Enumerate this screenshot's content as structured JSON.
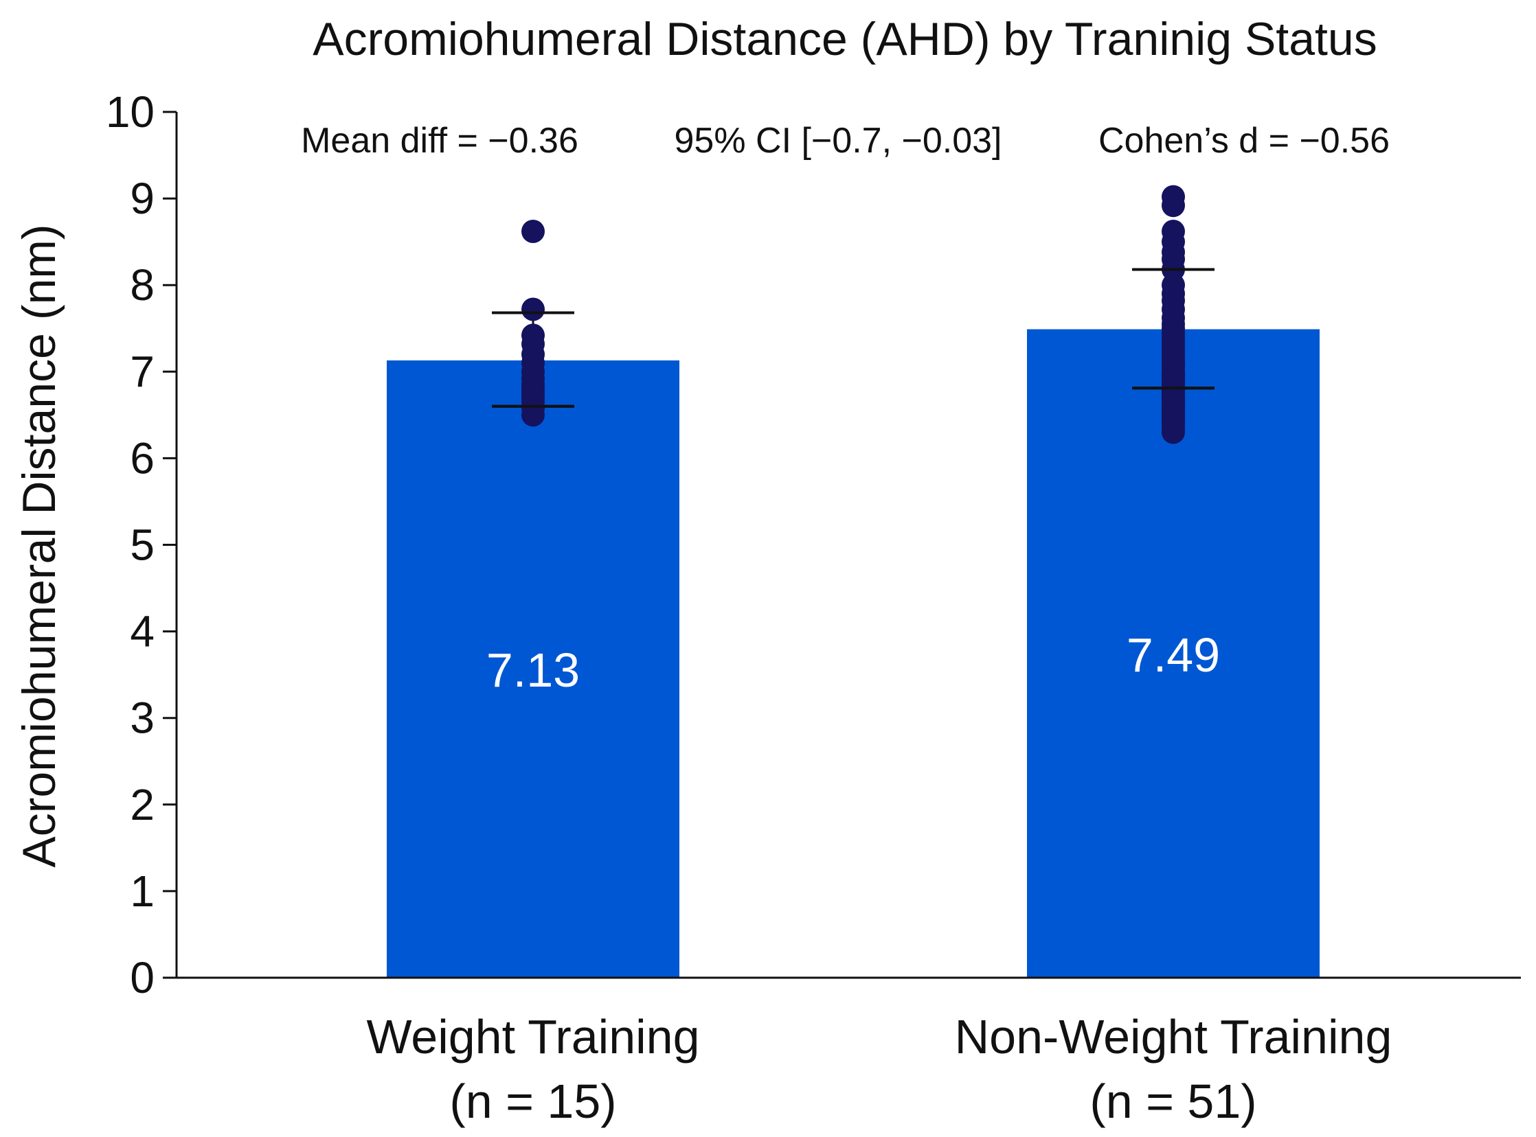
{
  "chart_data": {
    "type": "bar",
    "title": "Acromiohumeral Distance (AHD) by Traninig Status",
    "xlabel": "",
    "ylabel": "Acromiohumeral Distance (nm)",
    "ylim": [
      0,
      10
    ],
    "yticks": [
      0,
      1,
      2,
      3,
      4,
      5,
      6,
      7,
      8,
      9,
      10
    ],
    "grid": false,
    "bar_color": "#0057d3",
    "point_color": "#15135e",
    "categories": [
      {
        "name": "Weight Training",
        "n_label": "(n = 15)"
      },
      {
        "name": "Non-Weight Training",
        "n_label": "(n = 51)"
      }
    ],
    "values": [
      7.13,
      7.49
    ],
    "value_labels": [
      "7.13",
      "7.49"
    ],
    "error_bars": [
      {
        "lower": 6.6,
        "upper": 7.68
      },
      {
        "lower": 6.81,
        "upper": 8.18
      }
    ],
    "points": [
      [
        8.62,
        7.72,
        7.42,
        7.32,
        7.2,
        7.1,
        7.0,
        6.92,
        6.85,
        6.8,
        6.75,
        6.7,
        6.65,
        6.58,
        6.5
      ],
      [
        9.02,
        8.92,
        8.62,
        8.5,
        8.38,
        8.3,
        8.18,
        8.0,
        7.9,
        7.82,
        7.72,
        7.62,
        7.55,
        7.5,
        7.45,
        7.4,
        7.35,
        7.3,
        7.25,
        7.2,
        7.15,
        7.1,
        7.08,
        7.05,
        7.0,
        6.98,
        6.95,
        6.92,
        6.9,
        6.88,
        6.85,
        6.82,
        6.8,
        6.78,
        6.75,
        6.72,
        6.7,
        6.68,
        6.65,
        6.62,
        6.6,
        6.58,
        6.55,
        6.52,
        6.5,
        6.48,
        6.45,
        6.42,
        6.4,
        6.35,
        6.3
      ]
    ],
    "annotations": [
      "Mean diff = −0.36",
      "95% CI [−0.7, −0.03]",
      "Cohen’s d = −0.56"
    ]
  }
}
